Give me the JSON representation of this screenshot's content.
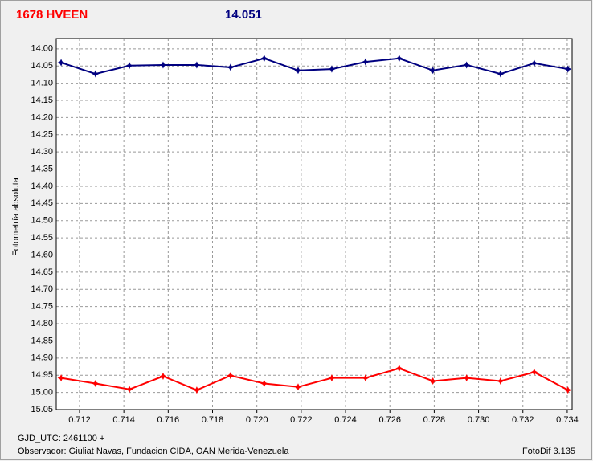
{
  "chart_data": {
    "type": "line",
    "title": "1678 HVEEN",
    "title_color": "#ff0000",
    "subtitle": "14.051",
    "subtitle_color": "#000080",
    "y_label": "Fotometría absoluta",
    "footer_left_1": "GJD_UTC: 2461100 +",
    "footer_left_2": "Observador: Giuliat Navas, Fundacion CIDA, OAN  Merida-Venezuela",
    "footer_right": "FotoDif 3.135",
    "x": [
      0.71117,
      0.71272,
      0.71425,
      0.71577,
      0.71729,
      0.71881,
      0.72033,
      0.72186,
      0.72338,
      0.7249,
      0.72642,
      0.72794,
      0.72946,
      0.73099,
      0.73251,
      0.73403
    ],
    "series": [
      {
        "color": "#000080",
        "values": [
          14.04,
          14.073,
          14.049,
          14.047,
          14.047,
          14.054,
          14.028,
          14.063,
          14.059,
          14.038,
          14.028,
          14.063,
          14.047,
          14.073,
          14.042,
          14.059
        ]
      },
      {
        "color": "#ff0000",
        "values": [
          14.958,
          14.974,
          14.991,
          14.953,
          14.993,
          14.951,
          14.974,
          14.984,
          14.958,
          14.958,
          14.93,
          14.967,
          14.958,
          14.967,
          14.941,
          14.993
        ]
      }
    ],
    "xlim": [
      0.71095,
      0.73422
    ],
    "xticks": [
      0.712,
      0.714,
      0.716,
      0.718,
      {
        "value": 0.72,
        "label": "0.720"
      },
      0.722,
      0.724,
      0.726,
      0.728,
      {
        "value": 0.73,
        "label": "0.730"
      },
      0.732,
      0.734
    ],
    "ylim": [
      15.05,
      13.97
    ],
    "yticks": [
      {
        "value": 14,
        "label": "14.00"
      },
      14.05,
      {
        "value": 14.1,
        "label": "14.10"
      },
      14.15,
      {
        "value": 14.2,
        "label": "14.20"
      },
      14.25,
      {
        "value": 14.3,
        "label": "14.30"
      },
      14.35,
      {
        "value": 14.4,
        "label": "14.40"
      },
      14.45,
      {
        "value": 14.5,
        "label": "14.50"
      },
      14.55,
      {
        "value": 14.6,
        "label": "14.60"
      },
      14.65,
      {
        "value": 14.7,
        "label": "14.70"
      },
      14.75,
      {
        "value": 14.8,
        "label": "14.80"
      },
      14.85,
      {
        "value": 14.9,
        "label": "14.90"
      },
      14.95,
      {
        "value": 15,
        "label": "15.00"
      },
      15.05
    ],
    "grid": true
  }
}
